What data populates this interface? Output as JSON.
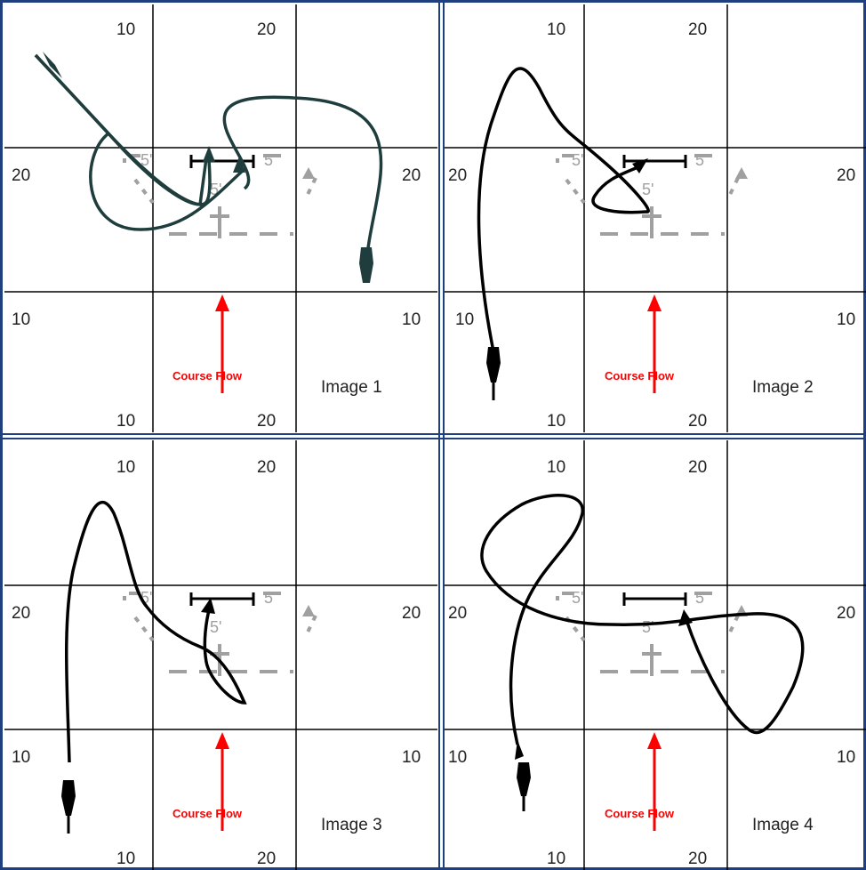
{
  "panels": [
    {
      "image_label": "Image 1",
      "grid_labels": {
        "top_left": "10",
        "top_right": "20",
        "left": "20",
        "right": "20",
        "lower_left": "10",
        "lower_right": "10",
        "bottom_left": "10",
        "bottom_right": "20"
      },
      "flow_label": "Course Flow",
      "dist_labels": [
        "5'",
        "5'",
        "5'"
      ]
    },
    {
      "image_label": "Image 2",
      "grid_labels": {
        "top_left": "10",
        "top_right": "20",
        "left": "20",
        "right": "20",
        "lower_left": "10",
        "lower_right": "10",
        "bottom_left": "10",
        "bottom_right": "20"
      },
      "flow_label": "Course Flow",
      "dist_labels": [
        "5'",
        "5'",
        "5'"
      ]
    },
    {
      "image_label": "Image 3",
      "grid_labels": {
        "top_left": "10",
        "top_right": "20",
        "left": "20",
        "right": "20",
        "lower_left": "10",
        "lower_right": "10",
        "bottom_left": "10",
        "bottom_right": "20"
      },
      "flow_label": "Course Flow",
      "dist_labels": [
        "5'",
        "5'",
        "5'"
      ]
    },
    {
      "image_label": "Image 4",
      "grid_labels": {
        "top_left": "10",
        "top_right": "20",
        "left": "20",
        "right": "20",
        "lower_left": "10",
        "lower_right": "10",
        "bottom_left": "10",
        "bottom_right": "20"
      },
      "flow_label": "Course Flow",
      "dist_labels": [
        "5'",
        "5'",
        "5'"
      ]
    }
  ],
  "colors": {
    "frame": "#1f3f7f",
    "grid": "#000000",
    "course_flow": "#ff0000",
    "obstacle": "#a0a0a0",
    "path_image1": "#1f3d3d",
    "path_other": "#000000"
  }
}
